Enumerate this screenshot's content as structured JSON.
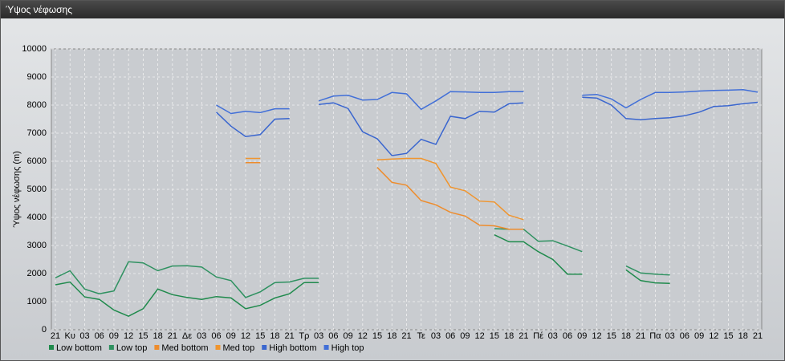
{
  "window_title": "Ύψος νέφωσης",
  "chart_data": {
    "type": "line",
    "y_label": "Ύψος νέφωσης (m)",
    "categories": [
      "21",
      "Κυ",
      "03",
      "06",
      "09",
      "12",
      "15",
      "18",
      "21",
      "Δε",
      "03",
      "06",
      "09",
      "12",
      "15",
      "18",
      "21",
      "Τρ",
      "03",
      "06",
      "09",
      "12",
      "15",
      "18",
      "21",
      "Τε",
      "03",
      "06",
      "09",
      "12",
      "15",
      "18",
      "21",
      "Πέ",
      "03",
      "06",
      "09",
      "12",
      "15",
      "18",
      "21",
      "Πα",
      "03",
      "06",
      "09",
      "12",
      "15",
      "18",
      "21"
    ],
    "ylim": [
      0,
      10000
    ],
    "yticks": [
      0,
      1000,
      2000,
      3000,
      4000,
      5000,
      6000,
      7000,
      8000,
      9000,
      10000
    ],
    "grid": true,
    "legend": "bottom-left",
    "series": [
      {
        "name": "Low bottom",
        "color": "#1f8a4c",
        "values": [
          1600,
          1700,
          1170,
          1080,
          700,
          480,
          750,
          1450,
          1250,
          1150,
          1080,
          1180,
          1130,
          750,
          870,
          1130,
          1280,
          1680,
          1680,
          null,
          null,
          null,
          null,
          null,
          null,
          null,
          null,
          null,
          null,
          null,
          3380,
          3130,
          3130,
          2780,
          2500,
          1980,
          1980,
          null,
          null,
          2130,
          1750,
          1670,
          1650,
          null,
          null,
          null,
          null,
          null,
          null
        ]
      },
      {
        "name": "Low top",
        "color": "#2e9160",
        "values": [
          1850,
          2100,
          1450,
          1280,
          1380,
          2420,
          2380,
          2100,
          2270,
          2280,
          2230,
          1880,
          1750,
          1150,
          1350,
          1680,
          1700,
          1830,
          1830,
          null,
          null,
          null,
          null,
          null,
          null,
          null,
          null,
          null,
          null,
          null,
          3600,
          3580,
          3580,
          3150,
          3170,
          2980,
          2780,
          null,
          null,
          2270,
          2020,
          1980,
          1950,
          null,
          null,
          null,
          null,
          null,
          null
        ]
      },
      {
        "name": "Med bottom",
        "color": "#ee8c2c",
        "values": [
          null,
          null,
          null,
          null,
          null,
          null,
          null,
          null,
          null,
          null,
          null,
          null,
          null,
          5950,
          5950,
          null,
          null,
          null,
          null,
          null,
          null,
          null,
          5780,
          5250,
          5150,
          4600,
          4450,
          4180,
          4050,
          3720,
          3700,
          3580,
          3580,
          null,
          null,
          null,
          null,
          null,
          null,
          null,
          null,
          null,
          null,
          null,
          null,
          null,
          null,
          null,
          null
        ]
      },
      {
        "name": "Med top",
        "color": "#f0952e",
        "values": [
          null,
          null,
          null,
          null,
          null,
          null,
          null,
          null,
          null,
          null,
          null,
          null,
          null,
          6100,
          6100,
          null,
          null,
          null,
          null,
          null,
          null,
          null,
          6050,
          6080,
          6100,
          6100,
          5920,
          5080,
          4950,
          4580,
          4550,
          4080,
          3920,
          null,
          null,
          null,
          null,
          null,
          null,
          null,
          null,
          null,
          null,
          null,
          null,
          null,
          null,
          null,
          null
        ]
      },
      {
        "name": "High bottom",
        "color": "#3a66cf",
        "values": [
          null,
          null,
          null,
          null,
          null,
          null,
          null,
          null,
          null,
          null,
          null,
          7750,
          7250,
          6880,
          6950,
          7500,
          7520,
          null,
          8020,
          8080,
          7880,
          7050,
          6800,
          6200,
          6280,
          6780,
          6600,
          7600,
          7520,
          7780,
          7750,
          8050,
          8080,
          null,
          null,
          null,
          8280,
          8250,
          8000,
          7520,
          7480,
          7520,
          7550,
          7620,
          7750,
          7950,
          7980,
          8050,
          8100
        ]
      },
      {
        "name": "High top",
        "color": "#416fd8",
        "values": [
          null,
          null,
          null,
          null,
          null,
          null,
          null,
          null,
          null,
          null,
          null,
          8000,
          7700,
          7780,
          7730,
          7870,
          7870,
          null,
          8150,
          8320,
          8350,
          8180,
          8200,
          8450,
          8400,
          7850,
          8150,
          8480,
          8470,
          8450,
          8450,
          8480,
          8480,
          null,
          null,
          null,
          8350,
          8380,
          8220,
          7900,
          8200,
          8450,
          8450,
          8470,
          8500,
          8520,
          8530,
          8550,
          8460
        ]
      }
    ]
  }
}
